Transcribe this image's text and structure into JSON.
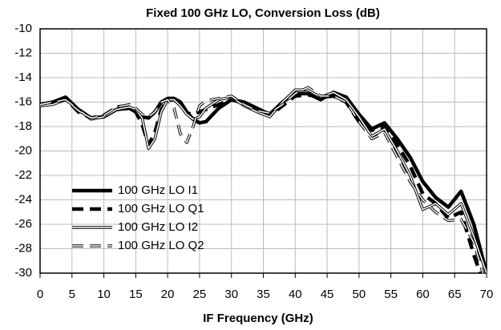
{
  "chart_data": {
    "type": "line",
    "title": "Fixed 100 GHz LO, Conversion Loss (dB)",
    "x_label": "IF Frequency  (GHz)",
    "x": [
      0,
      2,
      4,
      6,
      8,
      10,
      12,
      14,
      15,
      16,
      17,
      18,
      19,
      20,
      21,
      22,
      23,
      24,
      25,
      26,
      28,
      30,
      32,
      34,
      36,
      38,
      40,
      42,
      44,
      46,
      48,
      50,
      52,
      54,
      56,
      58,
      60,
      62,
      64,
      66,
      68,
      70
    ],
    "series": [
      {
        "name": "100 GHz LO I1",
        "color": "#000000",
        "style": "solid",
        "values": [
          -16.2,
          -16.0,
          -15.6,
          -16.6,
          -17.3,
          -17.2,
          -16.6,
          -16.5,
          -16.8,
          -17.2,
          -17.3,
          -16.8,
          -16.0,
          -15.7,
          -15.7,
          -16.0,
          -16.8,
          -17.4,
          -17.7,
          -17.6,
          -16.5,
          -15.8,
          -16.0,
          -16.5,
          -17.0,
          -16.0,
          -15.3,
          -15.3,
          -15.8,
          -15.2,
          -15.6,
          -17.0,
          -18.2,
          -17.7,
          -19.0,
          -20.5,
          -22.5,
          -23.8,
          -24.6,
          -23.3,
          -26.0,
          -30.0
        ]
      },
      {
        "name": "100 GHz LO Q1",
        "color": "#000000",
        "style": "dashed",
        "values": [
          -16.2,
          -16.0,
          -15.7,
          -16.8,
          -17.3,
          -17.1,
          -16.4,
          -16.3,
          -16.8,
          -17.8,
          -19.5,
          -18.5,
          -16.6,
          -15.8,
          -15.8,
          -16.2,
          -16.9,
          -17.0,
          -16.8,
          -16.6,
          -16.2,
          -15.8,
          -16.1,
          -16.6,
          -17.1,
          -16.3,
          -15.5,
          -15.4,
          -15.6,
          -15.5,
          -16.0,
          -17.6,
          -18.3,
          -18.0,
          -19.5,
          -21.2,
          -23.5,
          -24.3,
          -25.5,
          -25.0,
          -28.5,
          -31.5
        ]
      },
      {
        "name": "100 GHz LO I2",
        "color": "#000000",
        "style": "double",
        "values": [
          -16.3,
          -16.2,
          -15.8,
          -16.6,
          -17.4,
          -17.2,
          -16.6,
          -16.4,
          -16.6,
          -17.3,
          -19.8,
          -19.0,
          -16.8,
          -15.8,
          -15.8,
          -16.3,
          -17.0,
          -17.4,
          -17.2,
          -16.5,
          -15.8,
          -15.6,
          -16.3,
          -16.8,
          -17.2,
          -16.0,
          -15.0,
          -15.0,
          -15.6,
          -15.2,
          -15.8,
          -17.2,
          -18.8,
          -18.2,
          -20.0,
          -22.0,
          -24.8,
          -24.3,
          -25.2,
          -24.3,
          -27.0,
          -30.0
        ]
      },
      {
        "name": "100 GHz LO Q2",
        "color": "#000000",
        "style": "double-dashed",
        "values": [
          -16.2,
          -16.0,
          -15.8,
          -16.7,
          -17.3,
          -17.1,
          -16.4,
          -16.2,
          -16.5,
          -17.0,
          -17.2,
          -16.8,
          -16.0,
          -15.8,
          -16.5,
          -18.6,
          -19.3,
          -18.0,
          -16.3,
          -15.9,
          -15.7,
          -15.5,
          -16.2,
          -16.7,
          -16.9,
          -16.2,
          -15.3,
          -14.8,
          -15.5,
          -15.5,
          -16.0,
          -17.6,
          -19.0,
          -18.5,
          -20.5,
          -22.5,
          -24.0,
          -25.0,
          -25.7,
          -25.6,
          -27.5,
          -31.0
        ]
      }
    ],
    "xlim": [
      0,
      70
    ],
    "xticks": [
      0,
      5,
      10,
      15,
      20,
      25,
      30,
      35,
      40,
      45,
      50,
      55,
      60,
      65,
      70
    ],
    "ylim": [
      -30,
      -10
    ],
    "yticks": [
      -10,
      -12,
      -14,
      -16,
      -18,
      -20,
      -22,
      -24,
      -26,
      -28,
      -30
    ],
    "grid": true,
    "legend": "lower left"
  }
}
